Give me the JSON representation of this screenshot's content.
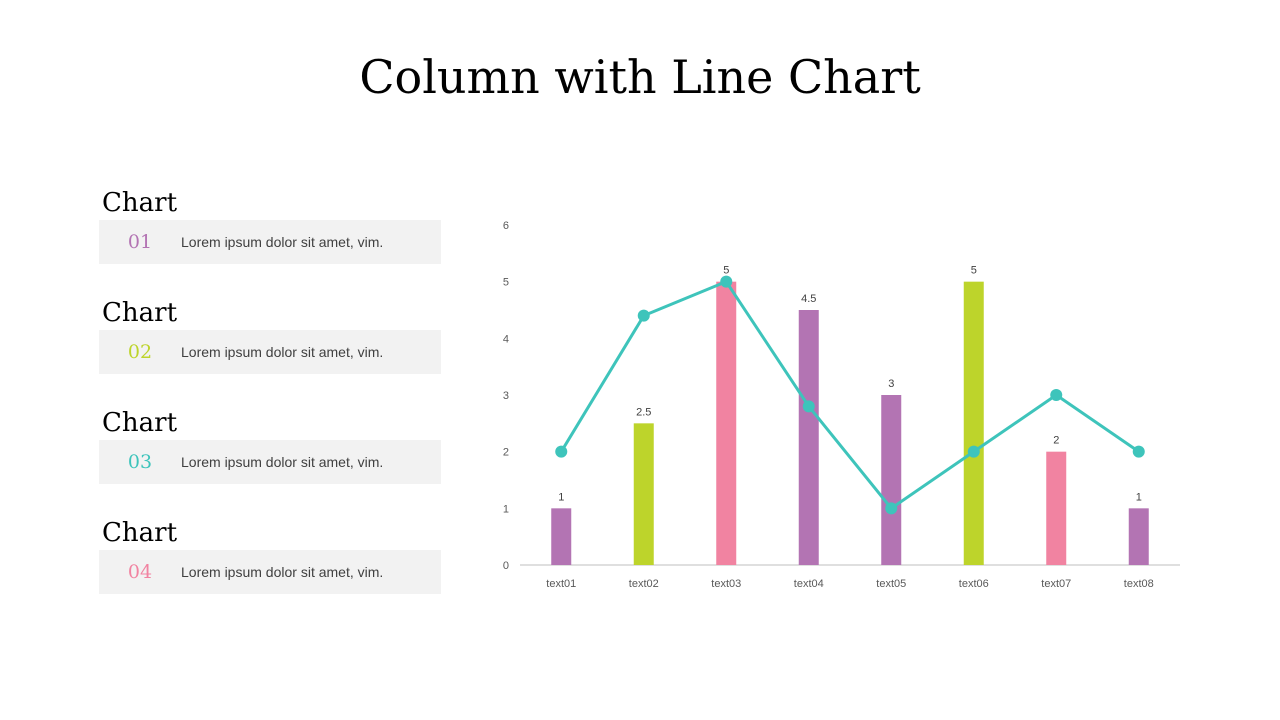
{
  "title": "Column with Line Chart",
  "items": [
    {
      "heading": "Chart",
      "number": "01",
      "text": "Lorem ipsum dolor sit amet, vim.",
      "color": "#b374b3"
    },
    {
      "heading": "Chart",
      "number": "02",
      "text": "Lorem ipsum dolor sit amet, vim.",
      "color": "#bdd42b"
    },
    {
      "heading": "Chart",
      "number": "03",
      "text": "Lorem ipsum dolor sit amet, vim.",
      "color": "#3ec4bb"
    },
    {
      "heading": "Chart",
      "number": "04",
      "text": "Lorem ipsum dolor sit amet, vim.",
      "color": "#f183a1"
    }
  ],
  "chart_data": {
    "type": "bar",
    "categories": [
      "text01",
      "text02",
      "text03",
      "text04",
      "text05",
      "text06",
      "text07",
      "text08"
    ],
    "series": [
      {
        "type": "bar",
        "values": [
          1,
          2.5,
          5,
          4.5,
          3,
          5,
          2,
          1
        ],
        "data_labels": [
          "1",
          "2.5",
          "5",
          "4.5",
          "3",
          "5",
          "2",
          "1"
        ],
        "colors": [
          "#b374b3",
          "#bdd42b",
          "#f183a1",
          "#b374b3",
          "#b374b3",
          "#bdd42b",
          "#f183a1",
          "#b374b3"
        ]
      },
      {
        "type": "line",
        "values": [
          2,
          4.4,
          5,
          2.8,
          1,
          2,
          3,
          2
        ],
        "color": "#3ec4bb"
      }
    ],
    "ylim": [
      0,
      6
    ],
    "yticks": [
      0,
      1,
      2,
      3,
      4,
      5,
      6
    ],
    "grid": false,
    "legend": "none"
  }
}
